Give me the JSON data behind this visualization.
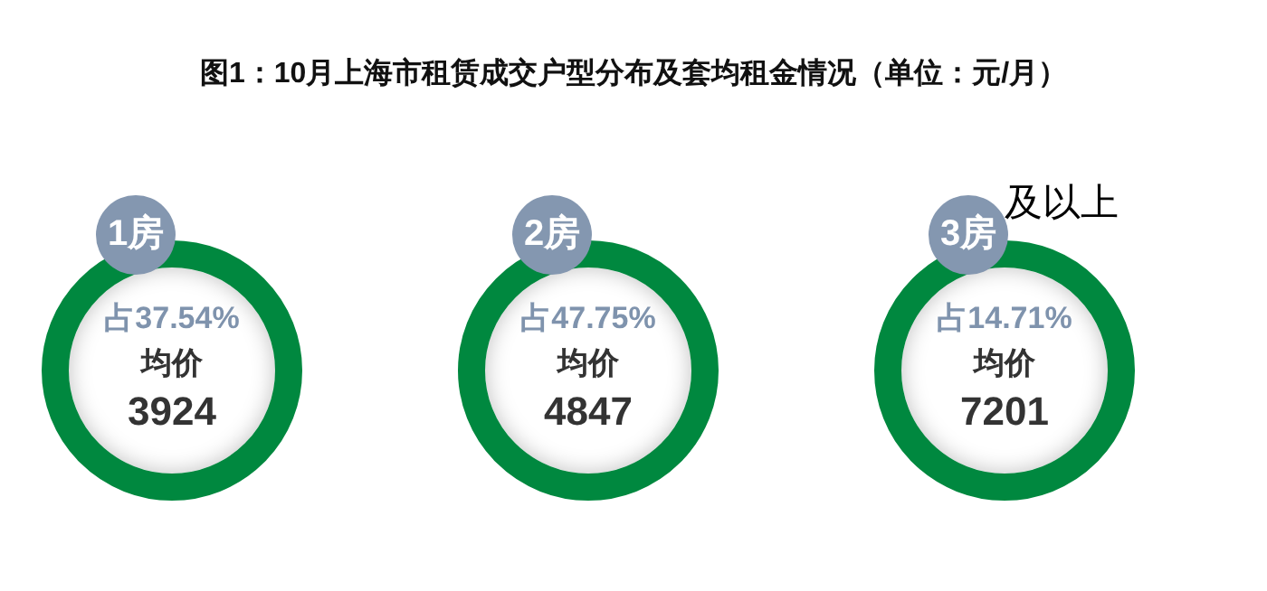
{
  "chart_data": {
    "type": "other",
    "title": "图1：10月上海市租赁成交户型分布及套均租金情况（单位：元/月）",
    "categories": [
      "1房",
      "2房",
      "3房"
    ],
    "series": [
      {
        "values": [
          37.54,
          47.75,
          14.71
        ],
        "value_labels": [
          "占37.54%",
          "占47.75%",
          "占14.71%"
        ]
      },
      {
        "name": "均价",
        "values": [
          3924,
          4847,
          7201
        ]
      }
    ],
    "data_labels": true,
    "annotations": [
      {
        "text": "及以上",
        "x": "3房"
      }
    ]
  }
}
